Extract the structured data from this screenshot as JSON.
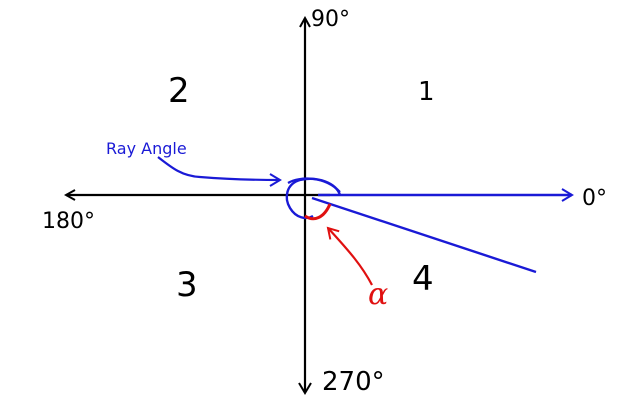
{
  "diagram": {
    "labels": {
      "angle_0": "0°",
      "angle_90": "90°",
      "angle_180": "180°",
      "angle_270": "270°",
      "ray_angle": "Ray Angle",
      "alpha": "α"
    },
    "quadrants": {
      "q1": "1",
      "q2": "2",
      "q3": "3",
      "q4": "4"
    },
    "colors": {
      "axes": "#000000",
      "ray": "#1a1ad6",
      "alpha_mark": "#e01010"
    }
  }
}
